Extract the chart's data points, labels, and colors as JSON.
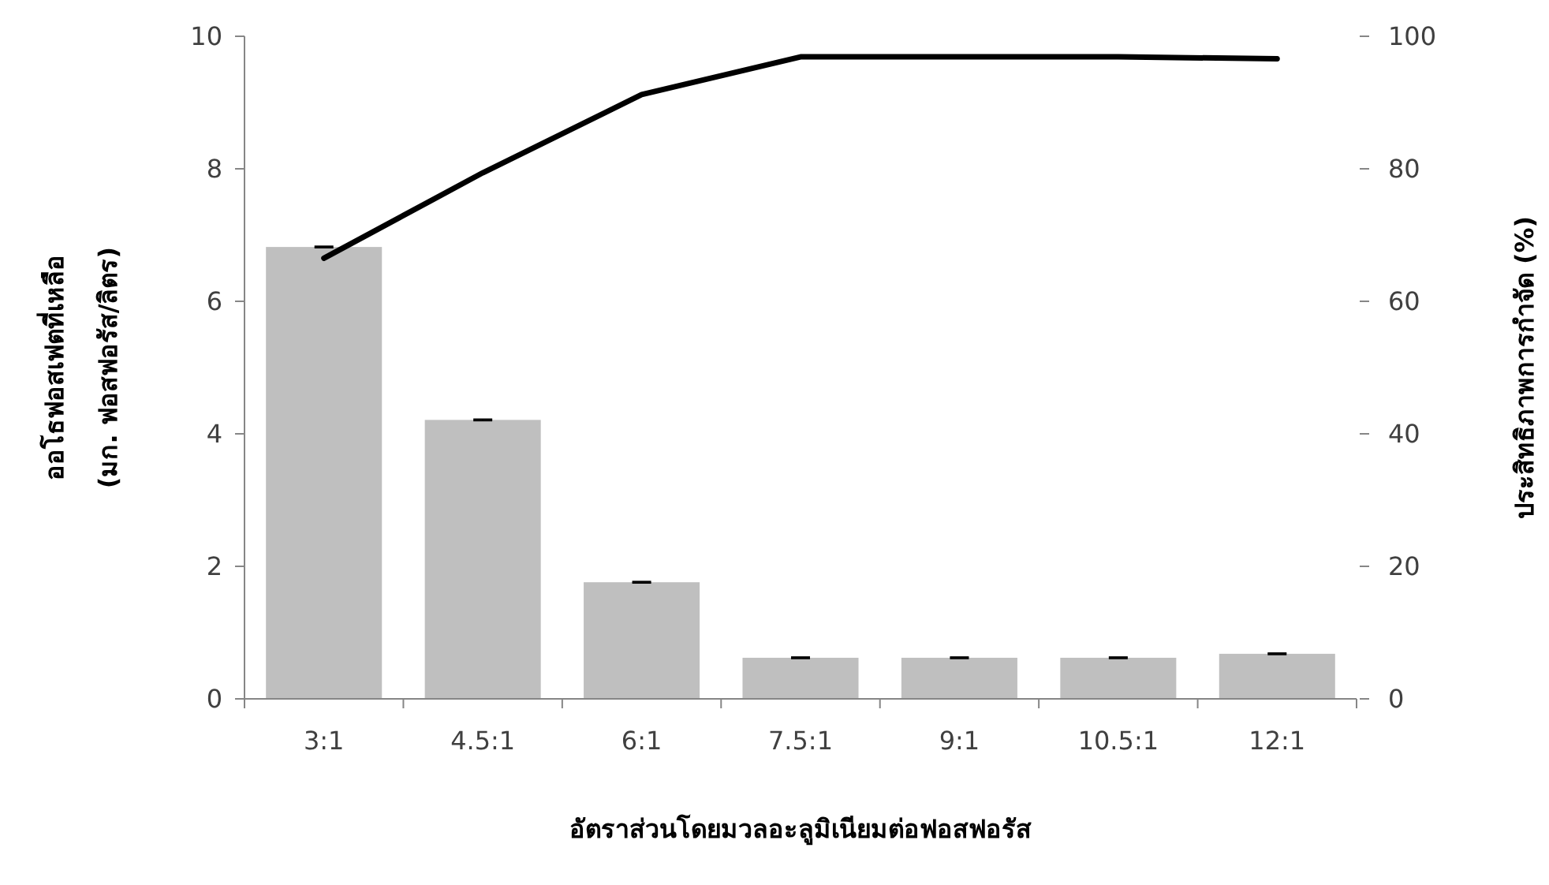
{
  "chart_data": {
    "type": "bar",
    "xlabel": "อัตราส่วนโดยมวลอะลูมิเนียมต่อฟอสฟอรัส",
    "ylabel": "ออโธฟอสเฟตที่เหลือ\n(มก. ฟอสฟอรัส/ลิตร)",
    "y2label": "ประสิทธิภาพการกำจัด (%)",
    "categories": [
      "3:1",
      "4.5:1",
      "6:1",
      "7.5:1",
      "9:1",
      "10.5:1",
      "12:1"
    ],
    "series": [
      {
        "color": "#bfbfbf",
        "values": [
          6.82,
          4.21,
          1.76,
          0.62,
          0.62,
          0.62,
          0.68
        ],
        "errors": [
          0.01,
          0.01,
          0.01,
          0.01,
          0.01,
          0.01,
          0.01
        ]
      },
      {
        "type": "line",
        "axis": "y2",
        "color": "#000000",
        "values": [
          66.5,
          79.4,
          91.2,
          96.9,
          96.9,
          96.9,
          96.6
        ]
      }
    ],
    "ylim": [
      0,
      10
    ],
    "yticks": [
      0,
      2,
      4,
      6,
      8,
      10
    ],
    "y2lim": [
      0,
      100
    ],
    "y2ticks": [
      0,
      20,
      40,
      60,
      80,
      100
    ],
    "grid": false,
    "marker": "none",
    "line_style": "solid"
  }
}
